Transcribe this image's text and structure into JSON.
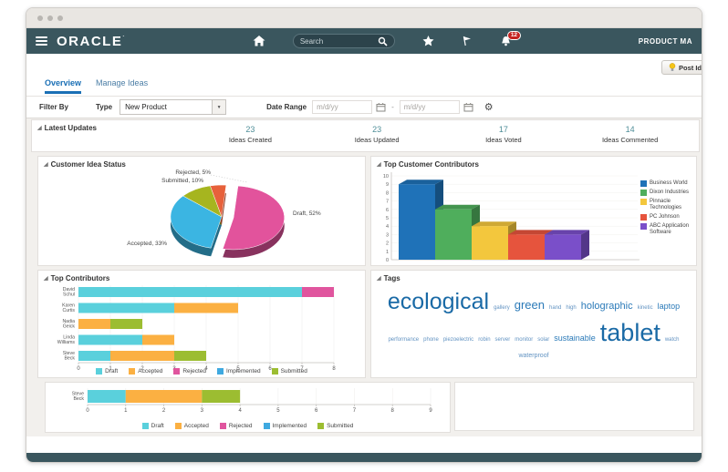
{
  "header": {
    "brand": "ORACLE",
    "search_placeholder": "Search",
    "notification_badge": "12",
    "app_title": "PRODUCT MA"
  },
  "actions": {
    "post_idea_label": "Post Id"
  },
  "tabs": [
    {
      "label": "Overview",
      "active": true
    },
    {
      "label": "Manage Ideas",
      "active": false
    }
  ],
  "filters": {
    "filter_by_label": "Filter By",
    "type_label": "Type",
    "type_value": "New Product",
    "date_range_label": "Date Range",
    "date_from_placeholder": "m/d/yy",
    "date_separator": "-",
    "date_to_placeholder": "m/d/yy"
  },
  "latest_updates": {
    "title": "Latest Updates",
    "stats": [
      {
        "value": "23",
        "label": "Ideas Created"
      },
      {
        "value": "23",
        "label": "Ideas Updated"
      },
      {
        "value": "17",
        "label": "Ideas Voted"
      },
      {
        "value": "14",
        "label": "Ideas Commented"
      }
    ]
  },
  "chart_data": [
    {
      "type": "pie",
      "title": "Customer Idea Status",
      "slices": [
        {
          "label": "Draft",
          "value": 52,
          "color": "#e2539c"
        },
        {
          "label": "Accepted",
          "value": 33,
          "color": "#3bb5e2"
        },
        {
          "label": "Submitted",
          "value": 10,
          "color": "#a6b51f"
        },
        {
          "label": "Rejected",
          "value": 5,
          "color": "#e7613b"
        }
      ]
    },
    {
      "type": "bar",
      "title": "Top Customer Contributors",
      "categories": [
        "Business World",
        "Dixon Industries",
        "Pinnacle Technologies",
        "PC Johnson",
        "ABC Application Software"
      ],
      "values": [
        9,
        6,
        4,
        3,
        3
      ],
      "colors": [
        "#1f72b8",
        "#4fae5c",
        "#f3c73d",
        "#e6543d",
        "#7a4fc9"
      ],
      "ylim": [
        0,
        10
      ],
      "legend_position": "right"
    },
    {
      "type": "stacked-bar-horizontal",
      "title": "Top Contributors",
      "categories": [
        "David Schul",
        "Karen Curtis",
        "Nadia Geick",
        "Linda Williams",
        "Steve Beck"
      ],
      "series": [
        {
          "name": "Draft",
          "color": "#5ad0dc",
          "values": [
            7,
            3,
            0,
            2,
            1
          ]
        },
        {
          "name": "Accepted",
          "color": "#fbb042",
          "values": [
            0,
            2,
            1,
            1,
            2
          ]
        },
        {
          "name": "Rejected",
          "color": "#e0559e",
          "values": [
            1,
            0,
            0,
            0,
            0
          ]
        },
        {
          "name": "Implemented",
          "color": "#3fa9e0",
          "values": [
            0,
            0,
            0,
            0,
            0
          ]
        },
        {
          "name": "Submitted",
          "color": "#9cbd31",
          "values": [
            0,
            0,
            1,
            0,
            1
          ]
        }
      ],
      "xlim": [
        0,
        8
      ],
      "legend_position": "bottom"
    },
    {
      "type": "wordcloud",
      "title": "Tags",
      "words": [
        {
          "text": "ecological",
          "size": 25
        },
        {
          "text": "gallery",
          "size": 6
        },
        {
          "text": "green",
          "size": 13
        },
        {
          "text": "hand",
          "size": 6
        },
        {
          "text": "high",
          "size": 6
        },
        {
          "text": "holographic",
          "size": 11
        },
        {
          "text": "kinetic",
          "size": 6
        },
        {
          "text": "laptop",
          "size": 9
        },
        {
          "text": "performance",
          "size": 6
        },
        {
          "text": "phone",
          "size": 6
        },
        {
          "text": "piezoelectric",
          "size": 6
        },
        {
          "text": "robin",
          "size": 6
        },
        {
          "text": "server",
          "size": 6
        },
        {
          "text": "monitor",
          "size": 6
        },
        {
          "text": "solar",
          "size": 6
        },
        {
          "text": "sustainable",
          "size": 9
        },
        {
          "text": "tablet",
          "size": 27
        },
        {
          "text": "watch",
          "size": 6
        },
        {
          "text": "waterproof",
          "size": 7
        }
      ]
    },
    {
      "type": "stacked-bar-horizontal",
      "title": "",
      "categories": [
        "Steve Beck"
      ],
      "series": [
        {
          "name": "Draft",
          "color": "#5ad0dc",
          "values": [
            1
          ]
        },
        {
          "name": "Accepted",
          "color": "#fbb042",
          "values": [
            2
          ]
        },
        {
          "name": "Rejected",
          "color": "#e0559e",
          "values": [
            0
          ]
        },
        {
          "name": "Implemented",
          "color": "#3fa9e0",
          "values": [
            0
          ]
        },
        {
          "name": "Submitted",
          "color": "#9cbd31",
          "values": [
            1
          ]
        }
      ],
      "xlim": [
        0,
        9
      ],
      "legend_position": "bottom"
    }
  ]
}
